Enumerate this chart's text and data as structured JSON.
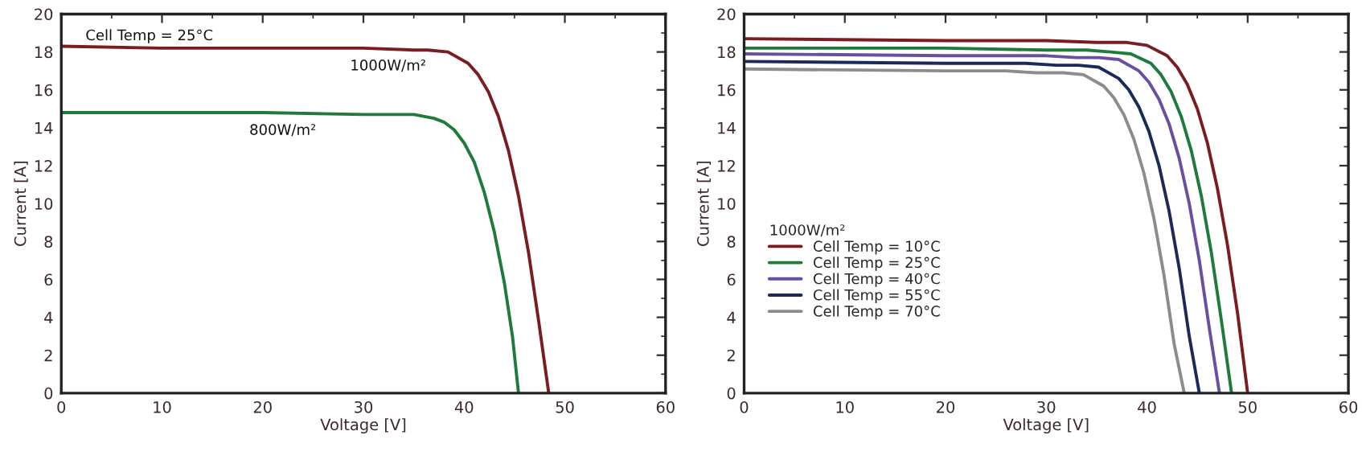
{
  "chart_data": [
    {
      "type": "line",
      "xlabel": "Voltage [V]",
      "ylabel": "Current [A]",
      "xlim": [
        0,
        60
      ],
      "ylim": [
        0,
        20
      ],
      "xticks": [
        0,
        10,
        20,
        30,
        40,
        50,
        60
      ],
      "yticks": [
        0,
        2,
        4,
        6,
        8,
        10,
        12,
        14,
        16,
        18,
        20
      ],
      "grid": false,
      "legend": false,
      "marker": "none",
      "line_style": "solid",
      "annotations": [
        "Cell Temp = 25°C"
      ],
      "series": [
        {
          "name": "1000W/m²",
          "color": "#7b1c22",
          "x": [
            0,
            10,
            20,
            30,
            35,
            36.4,
            38.4,
            40.4,
            41.4,
            42.4,
            43.4,
            44.4,
            45.4,
            46.4,
            47.4,
            48.4
          ],
          "values": [
            18.3,
            18.2,
            18.2,
            18.2,
            18.1,
            18.1,
            18.0,
            17.4,
            16.8,
            15.9,
            14.6,
            12.8,
            10.4,
            7.4,
            3.8,
            0
          ]
        },
        {
          "name": "800W/m²",
          "color": "#1e7b3a",
          "x": [
            0,
            10,
            20,
            30,
            35,
            37,
            38,
            39,
            40,
            41,
            42,
            43,
            44,
            44.8,
            45.4
          ],
          "values": [
            14.8,
            14.8,
            14.8,
            14.7,
            14.7,
            14.5,
            14.3,
            13.9,
            13.2,
            12.2,
            10.6,
            8.5,
            5.8,
            3.0,
            0
          ]
        }
      ]
    },
    {
      "type": "line",
      "xlabel": "Voltage [V]",
      "ylabel": "Current [A]",
      "xlim": [
        0,
        60
      ],
      "ylim": [
        0,
        20
      ],
      "xticks": [
        0,
        10,
        20,
        30,
        40,
        50,
        60
      ],
      "yticks": [
        0,
        2,
        4,
        6,
        8,
        10,
        12,
        14,
        16,
        18,
        20
      ],
      "grid": false,
      "legend": "left",
      "legend_title": "1000W/m²",
      "marker": "none",
      "line_style": "solid",
      "series": [
        {
          "name": "Cell Temp = 10°C",
          "color": "#7b1c22",
          "x": [
            0,
            20,
            30,
            35,
            38,
            40,
            42,
            43,
            44,
            45,
            46,
            47,
            48,
            49,
            50
          ],
          "values": [
            18.7,
            18.6,
            18.6,
            18.5,
            18.5,
            18.35,
            17.8,
            17.2,
            16.3,
            15.0,
            13.2,
            10.8,
            7.8,
            4.2,
            0
          ]
        },
        {
          "name": "Cell Temp = 25°C",
          "color": "#1e7b3a",
          "x": [
            0,
            20,
            30,
            34,
            36.4,
            38.4,
            40.4,
            41.4,
            42.4,
            43.4,
            44.4,
            45.4,
            46.4,
            47.4,
            48.4
          ],
          "values": [
            18.2,
            18.2,
            18.1,
            18.1,
            18.0,
            17.9,
            17.4,
            16.8,
            15.9,
            14.6,
            12.8,
            10.4,
            7.4,
            3.8,
            0
          ]
        },
        {
          "name": "Cell Temp = 40°C",
          "color": "#6a4fa0",
          "x": [
            0,
            20,
            30,
            33,
            35.2,
            37.2,
            39.2,
            40.2,
            41.2,
            42.2,
            43.2,
            44.2,
            45.2,
            46.2,
            47.2
          ],
          "values": [
            17.9,
            17.8,
            17.8,
            17.7,
            17.7,
            17.6,
            17.0,
            16.4,
            15.5,
            14.2,
            12.4,
            10.0,
            7.0,
            3.4,
            0
          ]
        },
        {
          "name": "Cell Temp = 55°C",
          "color": "#1c2a5a",
          "x": [
            0,
            20,
            28,
            31,
            33.2,
            35.2,
            37.2,
            38.2,
            39.2,
            40.2,
            41.2,
            42.2,
            43.2,
            44.2,
            45.2
          ],
          "values": [
            17.5,
            17.4,
            17.4,
            17.3,
            17.3,
            17.2,
            16.6,
            16.0,
            15.1,
            13.8,
            12.0,
            9.6,
            6.6,
            3.0,
            0
          ]
        },
        {
          "name": "Cell Temp = 70°C",
          "color": "#8c8c8c",
          "x": [
            0,
            20,
            26,
            29,
            31.7,
            33.7,
            35.7,
            36.7,
            37.7,
            38.7,
            39.7,
            40.7,
            41.7,
            42.7,
            43.7
          ],
          "values": [
            17.1,
            17.0,
            17.0,
            16.9,
            16.9,
            16.8,
            16.2,
            15.6,
            14.7,
            13.4,
            11.6,
            9.2,
            6.2,
            2.6,
            0
          ]
        }
      ]
    }
  ]
}
